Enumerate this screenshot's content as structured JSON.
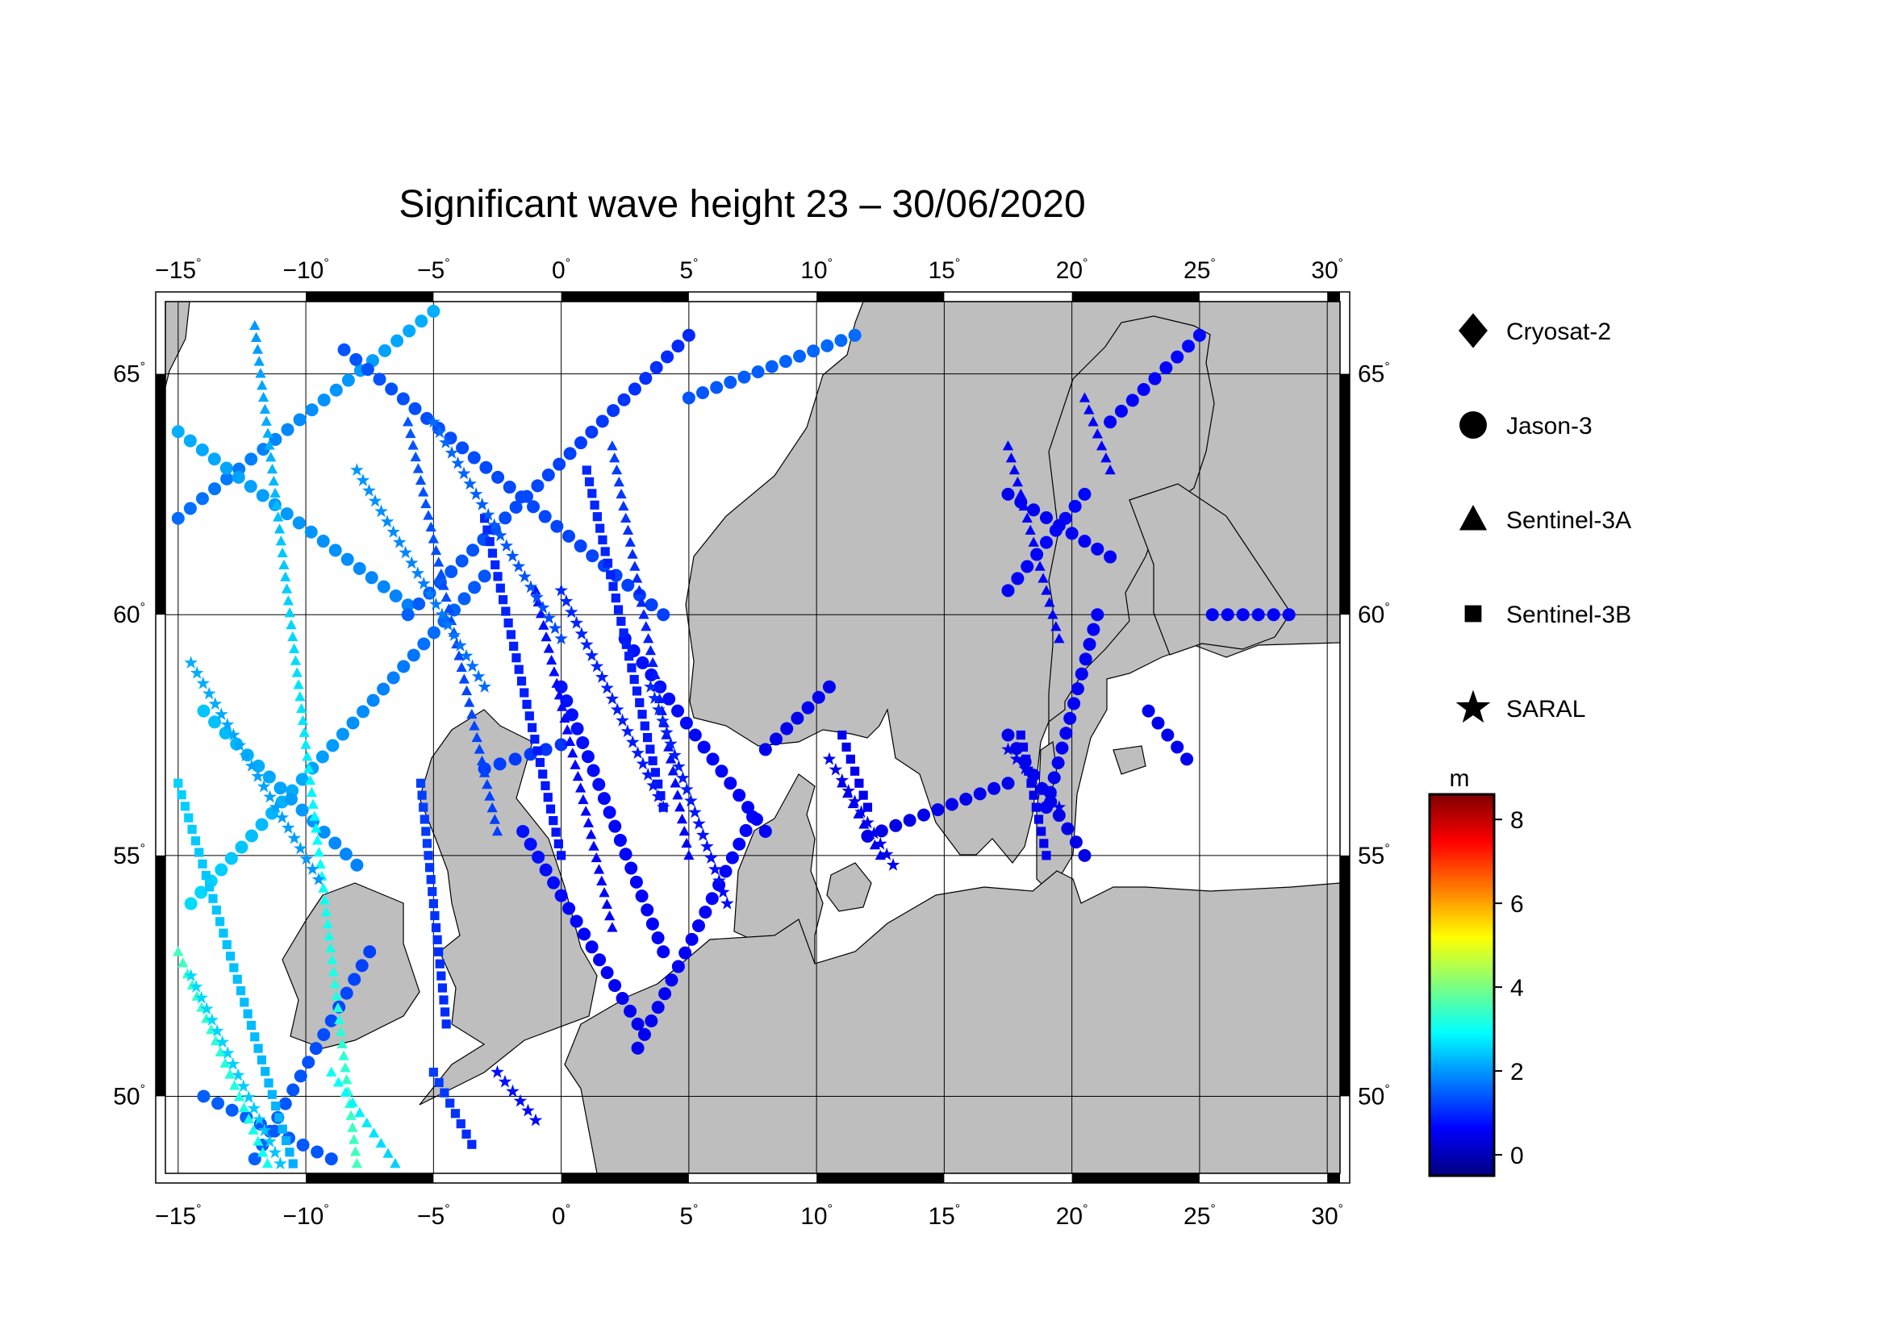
{
  "title": "Significant wave height 23 – 30/06/2020",
  "longitude_ticks": [
    {
      "value": -15,
      "label": "−15"
    },
    {
      "value": -10,
      "label": "−10"
    },
    {
      "value": -5,
      "label": "−5"
    },
    {
      "value": 0,
      "label": "0"
    },
    {
      "value": 5,
      "label": "5"
    },
    {
      "value": 10,
      "label": "10"
    },
    {
      "value": 15,
      "label": "15"
    },
    {
      "value": 20,
      "label": "20"
    },
    {
      "value": 25,
      "label": "25"
    },
    {
      "value": 30,
      "label": "30"
    }
  ],
  "latitude_ticks": [
    {
      "value": 50,
      "label": "50"
    },
    {
      "value": 55,
      "label": "55"
    },
    {
      "value": 60,
      "label": "60"
    },
    {
      "value": 65,
      "label": "65"
    }
  ],
  "degree_symbol": "°",
  "extent": {
    "lon_min": -15.5,
    "lon_max": 30.5,
    "lat_min": 48.4,
    "lat_max": 66.5
  },
  "colors": {
    "land": "#bebebe",
    "sea": "#ffffff",
    "coast": "#000000",
    "grid": "#000000"
  },
  "legend": {
    "items": [
      {
        "label": "Cryosat-2",
        "icon": "diamond-icon"
      },
      {
        "label": "Jason-3",
        "icon": "circle-icon"
      },
      {
        "label": "Sentinel-3A",
        "icon": "triangle-icon"
      },
      {
        "label": "Sentinel-3B",
        "icon": "square-icon"
      },
      {
        "label": "SARAL",
        "icon": "star-icon"
      }
    ]
  },
  "colorbar": {
    "unit": "m",
    "min": -0.5,
    "max": 8.6,
    "ticks": [
      {
        "value": 0,
        "label": "0"
      },
      {
        "value": 2,
        "label": "2"
      },
      {
        "value": 4,
        "label": "4"
      },
      {
        "value": 6,
        "label": "6"
      },
      {
        "value": 8,
        "label": "8"
      }
    ],
    "stops": [
      "#00007f",
      "#0000ff",
      "#007fff",
      "#00ffff",
      "#7fff7f",
      "#ffff00",
      "#ff7f00",
      "#ff0000",
      "#7f0000"
    ]
  },
  "tracks": [
    {
      "satellite": "Jason-3",
      "marker": "circle",
      "start": [
        -15.0,
        62.0
      ],
      "end": [
        -5.0,
        66.3
      ],
      "hs": [
        1.6,
        2.2
      ]
    },
    {
      "satellite": "Jason-3",
      "marker": "circle",
      "start": [
        -15.0,
        63.8
      ],
      "end": [
        -6.0,
        60.2
      ],
      "hs": [
        2.2,
        1.8
      ]
    },
    {
      "satellite": "Jason-3",
      "marker": "circle",
      "start": [
        -14.5,
        54.0
      ],
      "end": [
        -3.0,
        60.8
      ],
      "hs": [
        2.6,
        1.4
      ]
    },
    {
      "satellite": "Jason-3",
      "marker": "circle",
      "start": [
        -14.0,
        58.0
      ],
      "end": [
        -8.0,
        54.8
      ],
      "hs": [
        2.4,
        1.8
      ]
    },
    {
      "satellite": "Jason-3",
      "marker": "circle",
      "start": [
        -12.0,
        48.7
      ],
      "end": [
        -7.5,
        53.0
      ],
      "hs": [
        1.5,
        1.2
      ]
    },
    {
      "satellite": "Jason-3",
      "marker": "circle",
      "start": [
        -14.0,
        50.0
      ],
      "end": [
        -9.0,
        48.7
      ],
      "hs": [
        1.5,
        1.4
      ]
    },
    {
      "satellite": "Jason-3",
      "marker": "circle",
      "start": [
        -8.5,
        65.5
      ],
      "end": [
        4.0,
        60.0
      ],
      "hs": [
        1.4,
        1.2
      ]
    },
    {
      "satellite": "Jason-3",
      "marker": "circle",
      "start": [
        -6.0,
        60.0
      ],
      "end": [
        5.0,
        65.8
      ],
      "hs": [
        1.5,
        1.0
      ]
    },
    {
      "satellite": "Jason-3",
      "marker": "circle",
      "start": [
        -3.0,
        56.8
      ],
      "end": [
        0.0,
        57.3
      ],
      "hs": [
        1.2,
        1.1
      ]
    },
    {
      "satellite": "Jason-3",
      "marker": "circle",
      "start": [
        -1.5,
        55.5
      ],
      "end": [
        3.0,
        51.5
      ],
      "hs": [
        0.8,
        0.5
      ]
    },
    {
      "satellite": "Jason-3",
      "marker": "circle",
      "start": [
        0.0,
        58.5
      ],
      "end": [
        4.0,
        53.0
      ],
      "hs": [
        0.8,
        0.6
      ]
    },
    {
      "satellite": "Jason-3",
      "marker": "circle",
      "start": [
        3.0,
        51.0
      ],
      "end": [
        7.5,
        55.8
      ],
      "hs": [
        0.5,
        0.7
      ]
    },
    {
      "satellite": "Jason-3",
      "marker": "circle",
      "start": [
        2.5,
        59.5
      ],
      "end": [
        8.0,
        55.5
      ],
      "hs": [
        0.8,
        0.6
      ]
    },
    {
      "satellite": "Jason-3",
      "marker": "circle",
      "start": [
        5.0,
        64.5
      ],
      "end": [
        11.5,
        65.8
      ],
      "hs": [
        1.4,
        1.6
      ]
    },
    {
      "satellite": "Jason-3",
      "marker": "circle",
      "start": [
        8.0,
        57.2
      ],
      "end": [
        10.5,
        58.5
      ],
      "hs": [
        0.5,
        0.5
      ]
    },
    {
      "satellite": "Jason-3",
      "marker": "circle",
      "start": [
        12.0,
        55.4
      ],
      "end": [
        17.5,
        56.5
      ],
      "hs": [
        0.4,
        0.5
      ]
    },
    {
      "satellite": "Jason-3",
      "marker": "circle",
      "start": [
        17.5,
        57.5
      ],
      "end": [
        20.5,
        55.0
      ],
      "hs": [
        0.5,
        0.4
      ]
    },
    {
      "satellite": "Jason-3",
      "marker": "circle",
      "start": [
        19.0,
        56.0
      ],
      "end": [
        21.0,
        60.0
      ],
      "hs": [
        0.5,
        0.6
      ]
    },
    {
      "satellite": "Jason-3",
      "marker": "circle",
      "start": [
        17.5,
        60.5
      ],
      "end": [
        20.5,
        62.5
      ],
      "hs": [
        0.6,
        0.7
      ]
    },
    {
      "satellite": "Jason-3",
      "marker": "circle",
      "start": [
        17.5,
        62.5
      ],
      "end": [
        21.5,
        61.2
      ],
      "hs": [
        0.5,
        0.6
      ]
    },
    {
      "satellite": "Jason-3",
      "marker": "circle",
      "start": [
        21.5,
        64.0
      ],
      "end": [
        25.0,
        65.8
      ],
      "hs": [
        0.6,
        0.7
      ]
    },
    {
      "satellite": "Jason-3",
      "marker": "circle",
      "start": [
        23.0,
        58.0
      ],
      "end": [
        24.5,
        57.0
      ],
      "hs": [
        0.5,
        0.5
      ]
    },
    {
      "satellite": "Jason-3",
      "marker": "circle",
      "start": [
        25.5,
        60.0
      ],
      "end": [
        28.5,
        60.0
      ],
      "hs": [
        0.6,
        0.6
      ]
    },
    {
      "satellite": "Sentinel-3A",
      "marker": "triangle",
      "start": [
        -12.0,
        66.0
      ],
      "end": [
        -8.0,
        48.6
      ],
      "hs": [
        2.0,
        3.5
      ]
    },
    {
      "satellite": "Sentinel-3A",
      "marker": "triangle",
      "start": [
        -15.0,
        53.0
      ],
      "end": [
        -11.5,
        48.6
      ],
      "hs": [
        3.5,
        3.0
      ]
    },
    {
      "satellite": "Sentinel-3A",
      "marker": "triangle",
      "start": [
        -6.0,
        64.0
      ],
      "end": [
        -2.5,
        55.5
      ],
      "hs": [
        1.4,
        1.2
      ]
    },
    {
      "satellite": "Sentinel-3A",
      "marker": "triangle",
      "start": [
        2.0,
        63.5
      ],
      "end": [
        5.0,
        55.0
      ],
      "hs": [
        1.2,
        0.6
      ]
    },
    {
      "satellite": "Sentinel-3A",
      "marker": "triangle",
      "start": [
        -1.0,
        60.5
      ],
      "end": [
        2.0,
        53.5
      ],
      "hs": [
        0.8,
        0.6
      ]
    },
    {
      "satellite": "Sentinel-3A",
      "marker": "triangle",
      "start": [
        11.0,
        56.5
      ],
      "end": [
        12.5,
        55.0
      ],
      "hs": [
        0.5,
        0.5
      ]
    },
    {
      "satellite": "Sentinel-3A",
      "marker": "triangle",
      "start": [
        17.5,
        63.5
      ],
      "end": [
        19.5,
        59.5
      ],
      "hs": [
        0.6,
        0.6
      ]
    },
    {
      "satellite": "Sentinel-3A",
      "marker": "triangle",
      "start": [
        20.5,
        64.5
      ],
      "end": [
        21.5,
        63.0
      ],
      "hs": [
        0.6,
        0.6
      ]
    },
    {
      "satellite": "Sentinel-3A",
      "marker": "triangle",
      "start": [
        -9.0,
        50.5
      ],
      "end": [
        -6.5,
        48.6
      ],
      "hs": [
        3.0,
        2.5
      ]
    },
    {
      "satellite": "Sentinel-3B",
      "marker": "square",
      "start": [
        -15.0,
        56.5
      ],
      "end": [
        -10.5,
        48.6
      ],
      "hs": [
        2.5,
        2.2
      ]
    },
    {
      "satellite": "Sentinel-3B",
      "marker": "square",
      "start": [
        -3.0,
        62.0
      ],
      "end": [
        0.0,
        55.0
      ],
      "hs": [
        1.0,
        0.8
      ]
    },
    {
      "satellite": "Sentinel-3B",
      "marker": "square",
      "start": [
        1.0,
        63.0
      ],
      "end": [
        4.0,
        56.0
      ],
      "hs": [
        1.0,
        0.8
      ]
    },
    {
      "satellite": "Sentinel-3B",
      "marker": "square",
      "start": [
        -5.5,
        56.5
      ],
      "end": [
        -4.5,
        51.5
      ],
      "hs": [
        1.2,
        1.0
      ]
    },
    {
      "satellite": "Sentinel-3B",
      "marker": "square",
      "start": [
        11.0,
        57.5
      ],
      "end": [
        12.0,
        56.0
      ],
      "hs": [
        0.5,
        0.5
      ]
    },
    {
      "satellite": "Sentinel-3B",
      "marker": "square",
      "start": [
        18.0,
        57.5
      ],
      "end": [
        19.0,
        55.0
      ],
      "hs": [
        0.5,
        0.5
      ]
    },
    {
      "satellite": "Sentinel-3B",
      "marker": "square",
      "start": [
        -5.0,
        50.5
      ],
      "end": [
        -3.5,
        49.0
      ],
      "hs": [
        1.2,
        1.0
      ]
    },
    {
      "satellite": "SARAL",
      "marker": "star",
      "start": [
        -14.5,
        59.0
      ],
      "end": [
        -9.5,
        54.5
      ],
      "hs": [
        2.2,
        2.0
      ]
    },
    {
      "satellite": "SARAL",
      "marker": "star",
      "start": [
        -8.0,
        63.0
      ],
      "end": [
        -3.0,
        58.5
      ],
      "hs": [
        2.0,
        1.6
      ]
    },
    {
      "satellite": "SARAL",
      "marker": "star",
      "start": [
        -5.0,
        64.0
      ],
      "end": [
        0.0,
        59.5
      ],
      "hs": [
        1.6,
        1.3
      ]
    },
    {
      "satellite": "SARAL",
      "marker": "star",
      "start": [
        0.0,
        60.5
      ],
      "end": [
        4.0,
        56.0
      ],
      "hs": [
        1.0,
        0.8
      ]
    },
    {
      "satellite": "SARAL",
      "marker": "star",
      "start": [
        3.5,
        58.5
      ],
      "end": [
        6.5,
        54.0
      ],
      "hs": [
        1.0,
        0.7
      ]
    },
    {
      "satellite": "SARAL",
      "marker": "star",
      "start": [
        10.5,
        57.0
      ],
      "end": [
        13.0,
        54.8
      ],
      "hs": [
        0.5,
        0.5
      ]
    },
    {
      "satellite": "SARAL",
      "marker": "star",
      "start": [
        17.5,
        57.2
      ],
      "end": [
        19.5,
        56.0
      ],
      "hs": [
        0.5,
        0.5
      ]
    },
    {
      "satellite": "SARAL",
      "marker": "star",
      "start": [
        -14.5,
        52.5
      ],
      "end": [
        -11.0,
        48.6
      ],
      "hs": [
        2.6,
        2.4
      ]
    },
    {
      "satellite": "SARAL",
      "marker": "star",
      "start": [
        -2.5,
        50.5
      ],
      "end": [
        -1.0,
        49.5
      ],
      "hs": [
        0.8,
        0.7
      ]
    }
  ]
}
